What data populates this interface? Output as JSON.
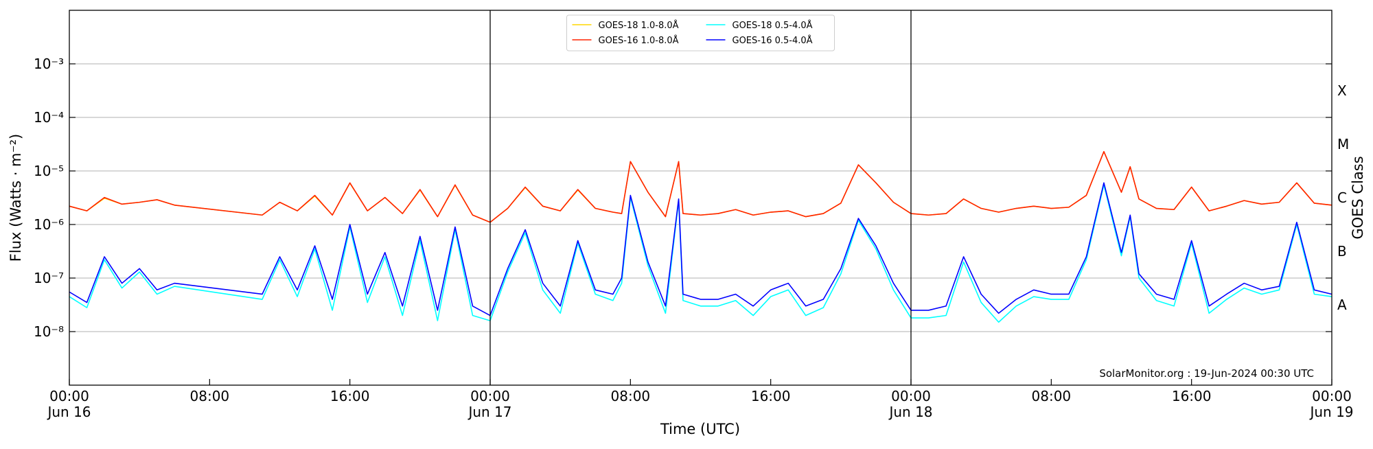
{
  "chart_data": {
    "type": "line",
    "x_label": "Time (UTC)",
    "y_label": "Flux (Watts · m⁻²)",
    "y_scale": "log",
    "grid": true,
    "legend_position": "top",
    "annotation": "SolarMonitor.org : 19-Jun-2024 00:30 UTC",
    "xlim": [
      0,
      72
    ],
    "xticks": [
      {
        "value": 0,
        "label": "00:00"
      },
      {
        "value": 8,
        "label": "08:00"
      },
      {
        "value": 16,
        "label": "16:00"
      },
      {
        "value": 24,
        "label": "00:00"
      },
      {
        "value": 32,
        "label": "08:00"
      },
      {
        "value": 40,
        "label": "16:00"
      },
      {
        "value": 48,
        "label": "00:00"
      },
      {
        "value": 56,
        "label": "08:00"
      },
      {
        "value": 64,
        "label": "16:00"
      },
      {
        "value": 72,
        "label": "00:00"
      }
    ],
    "xdate_ticks": [
      {
        "value": 0,
        "label": "Jun 16"
      },
      {
        "value": 24,
        "label": "Jun 17"
      },
      {
        "value": 48,
        "label": "Jun 18"
      },
      {
        "value": 72,
        "label": "Jun 19"
      }
    ],
    "day_lines": [
      24,
      48
    ],
    "ylim": [
      1e-09,
      0.01
    ],
    "yticks": [
      {
        "value": 1e-08,
        "label": "10⁻⁸"
      },
      {
        "value": 1e-07,
        "label": "10⁻⁷"
      },
      {
        "value": 1e-06,
        "label": "10⁻⁶"
      },
      {
        "value": 1e-05,
        "label": "10⁻⁵"
      },
      {
        "value": 0.0001,
        "label": "10⁻⁴"
      },
      {
        "value": 0.001,
        "label": "10⁻³"
      }
    ],
    "goes_class": {
      "label": "GOES Class",
      "classes": [
        {
          "name": "A",
          "lower": 1e-08,
          "upper": 1e-07
        },
        {
          "name": "B",
          "lower": 1e-07,
          "upper": 1e-06
        },
        {
          "name": "C",
          "lower": 1e-06,
          "upper": 1e-05
        },
        {
          "name": "M",
          "lower": 1e-05,
          "upper": 0.0001
        },
        {
          "name": "X",
          "lower": 0.0001,
          "upper": 0.001
        }
      ]
    },
    "x": [
      0,
      1,
      2,
      3,
      4,
      5,
      6,
      11,
      12,
      13,
      14,
      15,
      16,
      17,
      18,
      19,
      20,
      21,
      22,
      23,
      24,
      25,
      26,
      27,
      28,
      29,
      30,
      31,
      31.5,
      32,
      33,
      34,
      34.75,
      35,
      36,
      37,
      38,
      39,
      40,
      41,
      42,
      43,
      44,
      45,
      46,
      47,
      48,
      49,
      50,
      51,
      52,
      53,
      54,
      55,
      56,
      57,
      58,
      59,
      60,
      60.5,
      61,
      62,
      63,
      64,
      65,
      66,
      67,
      68,
      69,
      70,
      71,
      72
    ],
    "series": [
      {
        "name": "GOES-18 1.0-8.0Å",
        "color": "#ffd700",
        "values": [
          2.2e-06,
          1.8e-06,
          3.1e-06,
          2.4e-06,
          2.6e-06,
          2.9e-06,
          2.3e-06,
          1.5e-06,
          2.6e-06,
          1.8e-06,
          3.4e-06,
          1.5e-06,
          5.9e-06,
          1.8e-06,
          3.2e-06,
          1.6e-06,
          4.4e-06,
          1.4e-06,
          5.4e-06,
          1.5e-06,
          1.1e-06,
          2e-06,
          4.9e-06,
          2.2e-06,
          1.8e-06,
          4.4e-06,
          2e-06,
          1.7e-06,
          1.6e-06,
          1.5e-05,
          4e-06,
          1.4e-06,
          1.5e-05,
          1.6e-06,
          1.5e-06,
          1.6e-06,
          1.9e-06,
          1.5e-06,
          1.7e-06,
          1.8e-06,
          1.4e-06,
          1.6e-06,
          2.5e-06,
          1.3e-05,
          6e-06,
          2.6e-06,
          1.6e-06,
          1.5e-06,
          1.6e-06,
          3e-06,
          2e-06,
          1.7e-06,
          2e-06,
          2.2e-06,
          2e-06,
          2.1e-06,
          3.5e-06,
          2.3e-05,
          4e-06,
          1.2e-05,
          3e-06,
          2e-06,
          1.9e-06,
          5e-06,
          1.8e-06,
          2.2e-06,
          2.8e-06,
          2.4e-06,
          2.6e-06,
          6e-06,
          2.5e-06,
          2.3e-06
        ]
      },
      {
        "name": "GOES-16 1.0-8.0Å",
        "color": "#ff2200",
        "values": [
          2.2e-06,
          1.8e-06,
          3.2e-06,
          2.4e-06,
          2.6e-06,
          2.9e-06,
          2.3e-06,
          1.5e-06,
          2.6e-06,
          1.8e-06,
          3.5e-06,
          1.5e-06,
          6e-06,
          1.8e-06,
          3.2e-06,
          1.6e-06,
          4.5e-06,
          1.4e-06,
          5.5e-06,
          1.5e-06,
          1.1e-06,
          2e-06,
          5e-06,
          2.2e-06,
          1.8e-06,
          4.5e-06,
          2e-06,
          1.7e-06,
          1.6e-06,
          1.5e-05,
          4e-06,
          1.4e-06,
          1.5e-05,
          1.6e-06,
          1.5e-06,
          1.6e-06,
          1.9e-06,
          1.5e-06,
          1.7e-06,
          1.8e-06,
          1.4e-06,
          1.6e-06,
          2.5e-06,
          1.3e-05,
          6e-06,
          2.6e-06,
          1.6e-06,
          1.5e-06,
          1.6e-06,
          3e-06,
          2e-06,
          1.7e-06,
          2e-06,
          2.2e-06,
          2e-06,
          2.1e-06,
          3.5e-06,
          2.3e-05,
          4e-06,
          1.2e-05,
          3e-06,
          2e-06,
          1.9e-06,
          5e-06,
          1.8e-06,
          2.2e-06,
          2.8e-06,
          2.4e-06,
          2.6e-06,
          6e-06,
          2.5e-06,
          2.3e-06
        ]
      },
      {
        "name": "GOES-18 0.5-4.0Å",
        "color": "#00ffff",
        "values": [
          4.5e-08,
          2.8e-08,
          2.2e-07,
          6.5e-08,
          1.3e-07,
          5e-08,
          7e-08,
          4e-08,
          2.2e-07,
          4.5e-08,
          3.5e-07,
          2.5e-08,
          9e-07,
          3.5e-08,
          2.5e-07,
          2e-08,
          5e-07,
          1.6e-08,
          8e-07,
          2e-08,
          1.6e-08,
          1.3e-07,
          7e-07,
          6e-08,
          2.2e-08,
          4.5e-07,
          5e-08,
          3.8e-08,
          8e-08,
          3.2e-06,
          1.7e-07,
          2.2e-08,
          2.8e-06,
          3.8e-08,
          3e-08,
          3e-08,
          3.8e-08,
          2e-08,
          4.5e-08,
          6e-08,
          2e-08,
          2.8e-08,
          1.2e-07,
          1.2e-06,
          3.5e-07,
          6e-08,
          1.8e-08,
          1.8e-08,
          2e-08,
          2e-07,
          3.5e-08,
          1.5e-08,
          3e-08,
          4.5e-08,
          4e-08,
          4e-08,
          2.2e-07,
          5.5e-06,
          2.6e-07,
          1.4e-06,
          1e-07,
          3.8e-08,
          3e-08,
          4.5e-07,
          2.2e-08,
          4e-08,
          6.5e-08,
          5e-08,
          6e-08,
          1e-06,
          5e-08,
          4.5e-08
        ]
      },
      {
        "name": "GOES-16 0.5-4.0Å",
        "color": "#0000ff",
        "values": [
          5.5e-08,
          3.5e-08,
          2.5e-07,
          8e-08,
          1.5e-07,
          6e-08,
          8e-08,
          5e-08,
          2.5e-07,
          6e-08,
          4e-07,
          4e-08,
          1e-06,
          5e-08,
          3e-07,
          3e-08,
          6e-07,
          2.5e-08,
          9e-07,
          3e-08,
          2e-08,
          1.5e-07,
          8e-07,
          8e-08,
          3e-08,
          5e-07,
          6e-08,
          5e-08,
          1e-07,
          3.5e-06,
          2e-07,
          3e-08,
          3e-06,
          5e-08,
          4e-08,
          4e-08,
          5e-08,
          3e-08,
          6e-08,
          8e-08,
          3e-08,
          4e-08,
          1.5e-07,
          1.3e-06,
          4e-07,
          8e-08,
          2.5e-08,
          2.5e-08,
          3e-08,
          2.5e-07,
          5e-08,
          2.2e-08,
          4e-08,
          6e-08,
          5e-08,
          5e-08,
          2.5e-07,
          6e-06,
          3e-07,
          1.5e-06,
          1.2e-07,
          5e-08,
          4e-08,
          5e-07,
          3e-08,
          5e-08,
          8e-08,
          6e-08,
          7e-08,
          1.1e-06,
          6e-08,
          5e-08
        ]
      }
    ]
  }
}
